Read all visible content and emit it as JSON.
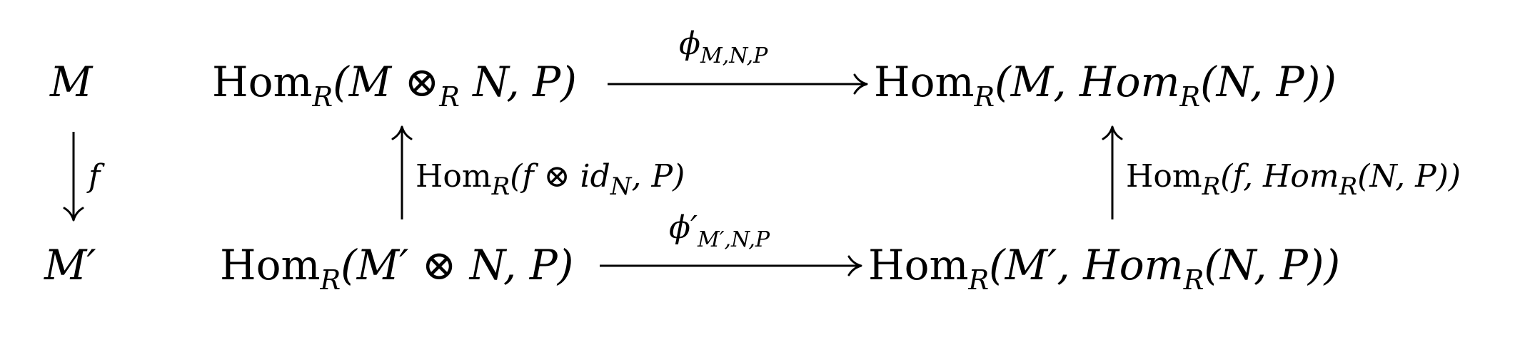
{
  "nodes": {
    "m": "M",
    "m_prime": "M′",
    "top_left": {
      "hom": "Hom",
      "sub": "R",
      "open": "(M ⊗",
      "mid_sub": "R",
      "close": " N, P)"
    },
    "top_right": {
      "hom1": "Hom",
      "sub1": "R",
      "mid": "(M, Hom",
      "sub2": "R",
      "close": "(N, P))"
    },
    "bottom_left": {
      "hom": "Hom",
      "sub": "R",
      "rest": "(M′ ⊗ N, P)"
    },
    "bottom_right": {
      "hom1": "Hom",
      "sub1": "R",
      "mid": "(M′, Hom",
      "sub2": "R",
      "close": "(N, P))"
    }
  },
  "arrows": {
    "f": "f",
    "phi_top": {
      "symbol": "ϕ",
      "sub": "M,N,P"
    },
    "phi_bottom": {
      "symbol": "ϕ′",
      "sub": "M′,N,P"
    },
    "left_vertical": {
      "hom": "Hom",
      "sub": "R",
      "open": "(f ⊗ id",
      "id_sub": "N",
      "close": ", P)"
    },
    "right_vertical": {
      "hom1": "Hom",
      "sub1": "R",
      "mid": "(f, Hom",
      "sub2": "R",
      "close": "(N, P))"
    }
  }
}
